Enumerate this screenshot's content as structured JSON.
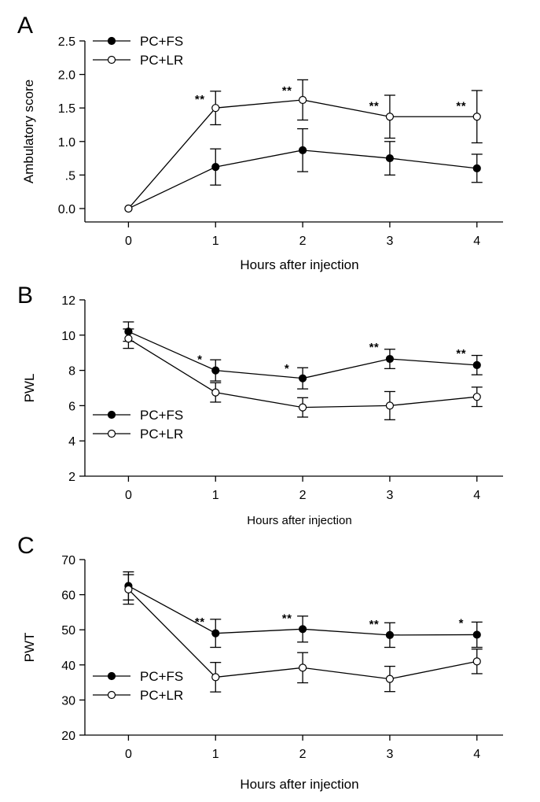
{
  "chart_data": [
    {
      "panel_label": "A",
      "type": "line",
      "x": [
        0,
        1,
        2,
        3,
        4
      ],
      "xticks": [
        "0",
        "1",
        "2",
        "3",
        "4"
      ],
      "xlim": [
        -0.5,
        4.3
      ],
      "ylim": [
        -0.2,
        2.5
      ],
      "yticks": [
        0,
        0.5,
        1.0,
        1.5,
        2.0,
        2.5
      ],
      "ytick_labels": [
        "0.0",
        ".5",
        "1.0",
        "1.5",
        "2.0",
        "2.5"
      ],
      "xlabel": "Hours after injection",
      "ylabel": "Ambulatory score",
      "legend_position": "top-left",
      "series": [
        {
          "name": "PC+FS",
          "marker": "filled",
          "values": [
            0,
            0.62,
            0.87,
            0.75,
            0.6
          ],
          "errors": [
            0,
            0.27,
            0.32,
            0.25,
            0.21
          ]
        },
        {
          "name": "PC+LR",
          "marker": "open",
          "values": [
            0,
            1.5,
            1.62,
            1.37,
            1.37
          ],
          "errors": [
            0,
            0.25,
            0.3,
            0.32,
            0.39
          ]
        }
      ],
      "annotations": [
        {
          "x": 1,
          "text": "**",
          "y": 1.57
        },
        {
          "x": 2,
          "text": "**",
          "y": 1.7
        },
        {
          "x": 3,
          "text": "**",
          "y": 1.47
        },
        {
          "x": 4,
          "text": "**",
          "y": 1.47
        }
      ]
    },
    {
      "panel_label": "B",
      "type": "line",
      "x": [
        0,
        1,
        2,
        3,
        4
      ],
      "xticks": [
        "0",
        "1",
        "2",
        "3",
        "4"
      ],
      "xlim": [
        -0.5,
        4.3
      ],
      "ylim": [
        2,
        12
      ],
      "yticks": [
        2,
        4,
        6,
        8,
        10,
        12
      ],
      "ytick_labels": [
        "2",
        "4",
        "6",
        "8",
        "10",
        "12"
      ],
      "xlabel": "Hours after injection",
      "ylabel": "PWL",
      "legend_position": "bottom-left",
      "series": [
        {
          "name": "PC+FS",
          "marker": "filled",
          "values": [
            10.2,
            8.0,
            7.55,
            8.65,
            8.3
          ],
          "errors": [
            0.55,
            0.6,
            0.6,
            0.55,
            0.55
          ]
        },
        {
          "name": "PC+LR",
          "marker": "open",
          "values": [
            9.8,
            6.75,
            5.9,
            6.0,
            6.5
          ],
          "errors": [
            0.55,
            0.55,
            0.55,
            0.8,
            0.55
          ]
        }
      ],
      "annotations": [
        {
          "x": 1,
          "text": "*",
          "y": 8.4
        },
        {
          "x": 2,
          "text": "*",
          "y": 7.9
        },
        {
          "x": 3,
          "text": "**",
          "y": 9.1
        },
        {
          "x": 4,
          "text": "**",
          "y": 8.75
        }
      ]
    },
    {
      "panel_label": "C",
      "type": "line",
      "x": [
        0,
        1,
        2,
        3,
        4
      ],
      "xticks": [
        "0",
        "1",
        "2",
        "3",
        "4"
      ],
      "xlim": [
        -0.5,
        4.3
      ],
      "ylim": [
        20,
        70
      ],
      "yticks": [
        20,
        30,
        40,
        50,
        60,
        70
      ],
      "ytick_labels": [
        "20",
        "30",
        "40",
        "50",
        "60",
        "70"
      ],
      "xlabel": "Hours after injection",
      "ylabel": "PWT",
      "legend_position": "bottom-left",
      "series": [
        {
          "name": "PC+FS",
          "marker": "filled",
          "values": [
            62.5,
            49.0,
            50.2,
            48.5,
            48.6
          ],
          "errors": [
            4.0,
            4.0,
            3.7,
            3.5,
            3.6
          ]
        },
        {
          "name": "PC+LR",
          "marker": "open",
          "values": [
            61.5,
            36.5,
            39.2,
            36.0,
            41.0
          ],
          "errors": [
            4.2,
            4.2,
            4.3,
            3.6,
            3.5
          ]
        }
      ],
      "annotations": [
        {
          "x": 1,
          "text": "**",
          "y": 51.2
        },
        {
          "x": 2,
          "text": "**",
          "y": 52.2
        },
        {
          "x": 3,
          "text": "**",
          "y": 50.5
        },
        {
          "x": 4,
          "text": "*",
          "y": 50.8
        }
      ]
    }
  ]
}
